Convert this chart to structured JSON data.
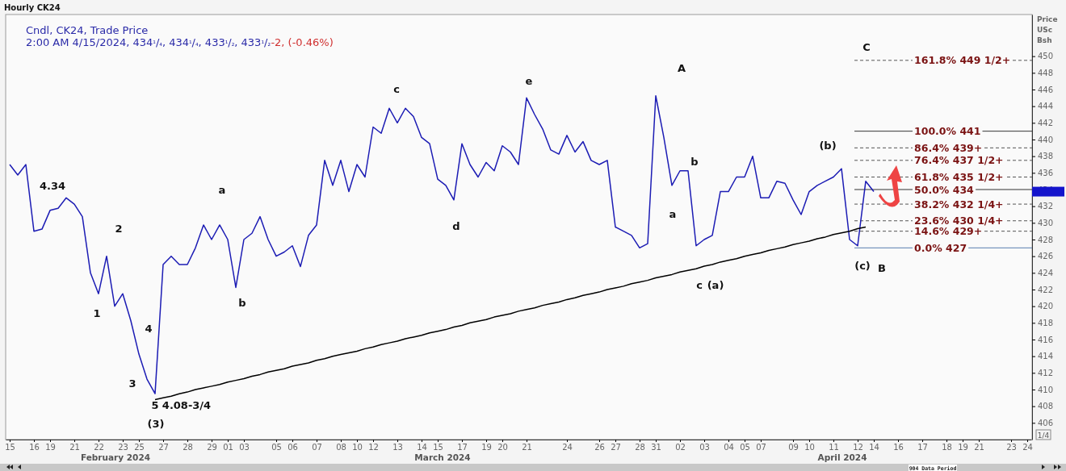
{
  "chart_data": {
    "type": "line",
    "title": "Hourly CK24",
    "subtitle": "Cndl, CK24, Trade Price",
    "ylabel": "Price USc Bsh",
    "categories": [
      "15",
      null,
      null,
      "16",
      null,
      "19",
      null,
      null,
      "21",
      null,
      null,
      "22",
      null,
      null,
      "23",
      null,
      "25",
      null,
      null,
      "27",
      null,
      null,
      "28",
      null,
      null,
      "29",
      null,
      "01",
      null,
      "03",
      null,
      null,
      null,
      "05",
      null,
      "06",
      null,
      null,
      "07",
      null,
      null,
      "08",
      null,
      "10",
      null,
      "12",
      null,
      null,
      "13",
      null,
      null,
      "14",
      null,
      "15",
      null,
      null,
      "17",
      null,
      null,
      "19",
      null,
      "20",
      null,
      null,
      "21",
      null,
      null,
      null,
      null,
      "24",
      null,
      null,
      null,
      "26",
      null,
      "27",
      null,
      null,
      "28",
      null,
      "31",
      null,
      null,
      "02",
      null,
      null,
      "03",
      null,
      null,
      "04",
      null,
      "05",
      null,
      "07",
      null,
      null,
      null,
      "09",
      null,
      "10",
      null,
      null,
      "11",
      null,
      null,
      "12",
      null,
      "14",
      null,
      null,
      "16",
      null,
      null,
      "17",
      null,
      null,
      "18",
      null,
      "19",
      null,
      "21",
      null,
      null,
      null,
      "23",
      null,
      "24"
    ],
    "ylim": [
      404,
      455
    ],
    "yticks": [
      406,
      408,
      410,
      412,
      414,
      416,
      418,
      420,
      422,
      424,
      426,
      428,
      430,
      432,
      434,
      436,
      438,
      440,
      442,
      444,
      446,
      448,
      450
    ],
    "series": [
      {
        "color": "#1c1cb4",
        "values": [
          437,
          435.75,
          437,
          429,
          429.25,
          431.5,
          431.75,
          433,
          432.25,
          430.75,
          424,
          421.5,
          426,
          420,
          421.5,
          418.25,
          414.25,
          411.25,
          409.5,
          425,
          426,
          425,
          425,
          427,
          429.75,
          428,
          429.75,
          428,
          422.25,
          428,
          428.75,
          430.75,
          428,
          426,
          426.5,
          427.25,
          424.75,
          428.5,
          429.75,
          437.5,
          434.5,
          437.5,
          433.75,
          437,
          435.5,
          441.5,
          440.75,
          443.75,
          442,
          443.75,
          442.75,
          440.25,
          439.5,
          435.25,
          434.5,
          432.75,
          439.5,
          437,
          435.5,
          437.25,
          436.25,
          439.25,
          438.5,
          437,
          445,
          443,
          441.25,
          438.75,
          438.25,
          440.5,
          438.5,
          439.75,
          437.5,
          437,
          437.5,
          429.5,
          429,
          428.5,
          427,
          427.5,
          445.25,
          440.25,
          434.5,
          436.25,
          436.25,
          427.25,
          428,
          428.5,
          433.75,
          433.75,
          435.5,
          435.5,
          438,
          433,
          433,
          435,
          434.75,
          432.75,
          431,
          433.75,
          434.5,
          435,
          435.5,
          436.5,
          428,
          427.25,
          435,
          433.75,
          null,
          null,
          null,
          null,
          null,
          null,
          null,
          null,
          null,
          null,
          null,
          null,
          null,
          null,
          null,
          null,
          null,
          null,
          null
        ]
      },
      {
        "color": "#000000",
        "values": [
          null,
          null,
          null,
          null,
          null,
          null,
          null,
          null,
          null,
          null,
          null,
          null,
          null,
          null,
          null,
          null,
          null,
          null,
          408.8,
          409.0,
          409.2,
          409.5,
          409.7,
          410.0,
          410.2,
          410.4,
          410.6,
          410.9,
          411.1,
          411.3,
          411.6,
          411.8,
          412.1,
          412.3,
          412.5,
          412.8,
          413.0,
          413.2,
          413.5,
          413.7,
          414.0,
          414.2,
          414.4,
          414.6,
          414.9,
          415.1,
          415.4,
          415.6,
          415.8,
          416.1,
          416.3,
          416.5,
          416.8,
          417.0,
          417.2,
          417.5,
          417.7,
          418.0,
          418.2,
          418.4,
          418.7,
          418.9,
          419.1,
          419.4,
          419.6,
          419.8,
          420.1,
          420.3,
          420.5,
          420.8,
          421.0,
          421.3,
          421.5,
          421.7,
          422.0,
          422.2,
          422.4,
          422.7,
          422.9,
          423.1,
          423.4,
          423.6,
          423.8,
          424.1,
          424.3,
          424.5,
          424.8,
          425.0,
          425.3,
          425.5,
          425.7,
          426.0,
          426.2,
          426.4,
          426.7,
          426.9,
          427.1,
          427.4,
          427.6,
          427.8,
          428.1,
          428.3,
          428.6,
          428.8,
          429.0,
          429.3,
          429.5,
          null,
          null,
          null,
          null,
          null,
          null,
          null,
          null,
          null,
          null,
          null,
          null,
          null,
          null,
          null,
          null,
          null,
          null,
          null,
          null
        ]
      }
    ],
    "ref_lines": [
      {
        "axis": "y",
        "value": 449.5,
        "label": "161.8% 449 1/2+",
        "color": "#555555",
        "line_style": "dashed"
      },
      {
        "axis": "y",
        "value": 441,
        "label": "100.0% 441",
        "color": "#333333",
        "line_style": "solid"
      },
      {
        "axis": "y",
        "value": 439,
        "label": "86.4% 439+",
        "color": "#555555",
        "line_style": "dashed"
      },
      {
        "axis": "y",
        "value": 437.5,
        "label": "76.4% 437 1/2+",
        "color": "#555555",
        "line_style": "dashed"
      },
      {
        "axis": "y",
        "value": 435.5,
        "label": "61.8% 435 1/2+",
        "color": "#555555",
        "line_style": "dashed"
      },
      {
        "axis": "y",
        "value": 434,
        "label": "50.0% 434",
        "color": "#333333",
        "line_style": "solid"
      },
      {
        "axis": "y",
        "value": 432.25,
        "label": "38.2% 432 1/4+",
        "color": "#555555",
        "line_style": "dashed"
      },
      {
        "axis": "y",
        "value": 430.25,
        "label": "23.6% 430 1/4+",
        "color": "#555555",
        "line_style": "dashed"
      },
      {
        "axis": "y",
        "value": 429,
        "label": "14.6% 429+",
        "color": "#555555",
        "line_style": "dashed"
      },
      {
        "axis": "y",
        "value": 427,
        "label": "0.0% 427",
        "color": "#5a7fb0",
        "line_style": "solid"
      }
    ],
    "annotations": [
      "2:00 AM 4/15/2024, 434¹/₄, 434¹/₄, 433¹/₂, 433¹/₂",
      "-2, (-0.46%)",
      "904 Data Period",
      "1/4",
      "February 2024",
      "March 2024",
      "April 2024",
      "4.34",
      "2",
      "1",
      "3",
      "4",
      "5",
      "4.08-3/4",
      "(3)",
      "a",
      "b",
      "c",
      "d",
      "e",
      "A",
      "a",
      "b",
      "c",
      "(a)",
      "(b)",
      "(c)",
      "B",
      "C"
    ]
  }
}
